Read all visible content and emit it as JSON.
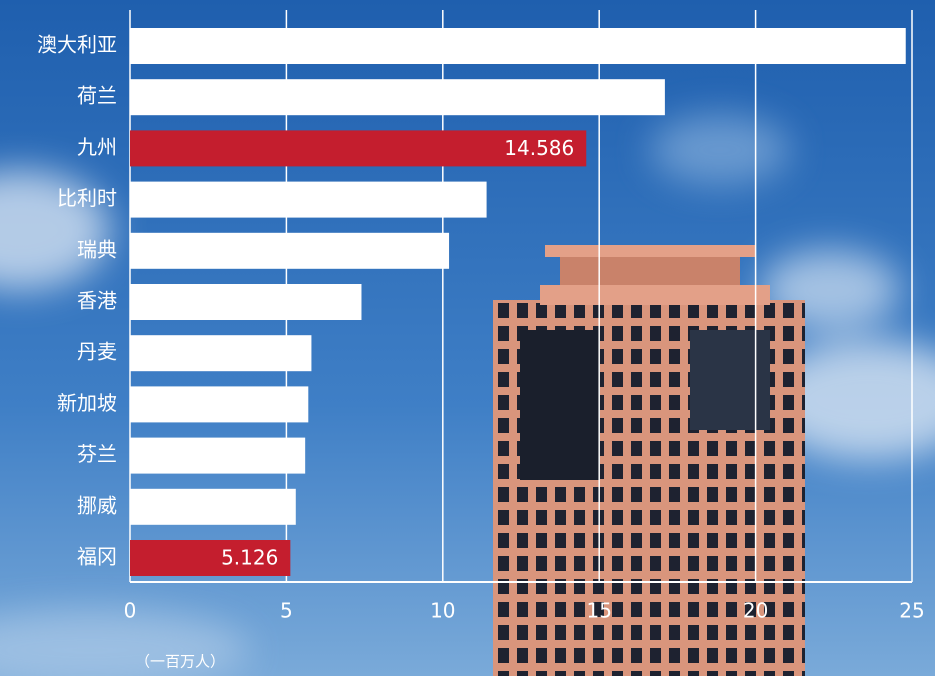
{
  "chart_data": {
    "type": "bar",
    "orientation": "horizontal",
    "categories": [
      "澳大利亚",
      "荷兰",
      "九州",
      "比利时",
      "瑞典",
      "香港",
      "丹麦",
      "新加坡",
      "芬兰",
      "挪威",
      "福冈"
    ],
    "values": [
      24.8,
      17.1,
      14.586,
      11.4,
      10.2,
      7.4,
      5.8,
      5.7,
      5.6,
      5.3,
      5.126
    ],
    "value_labels": [
      null,
      null,
      "14.586",
      null,
      null,
      null,
      null,
      null,
      null,
      null,
      "5.126"
    ],
    "colors": [
      "#ffffff",
      "#ffffff",
      "#c41e2e",
      "#ffffff",
      "#ffffff",
      "#ffffff",
      "#ffffff",
      "#ffffff",
      "#ffffff",
      "#ffffff",
      "#c41e2e"
    ],
    "xlim": [
      0,
      25
    ],
    "xticks": [
      0,
      5,
      10,
      15,
      20,
      25
    ],
    "grid": true,
    "x_unit_label": "（一百万人）"
  }
}
